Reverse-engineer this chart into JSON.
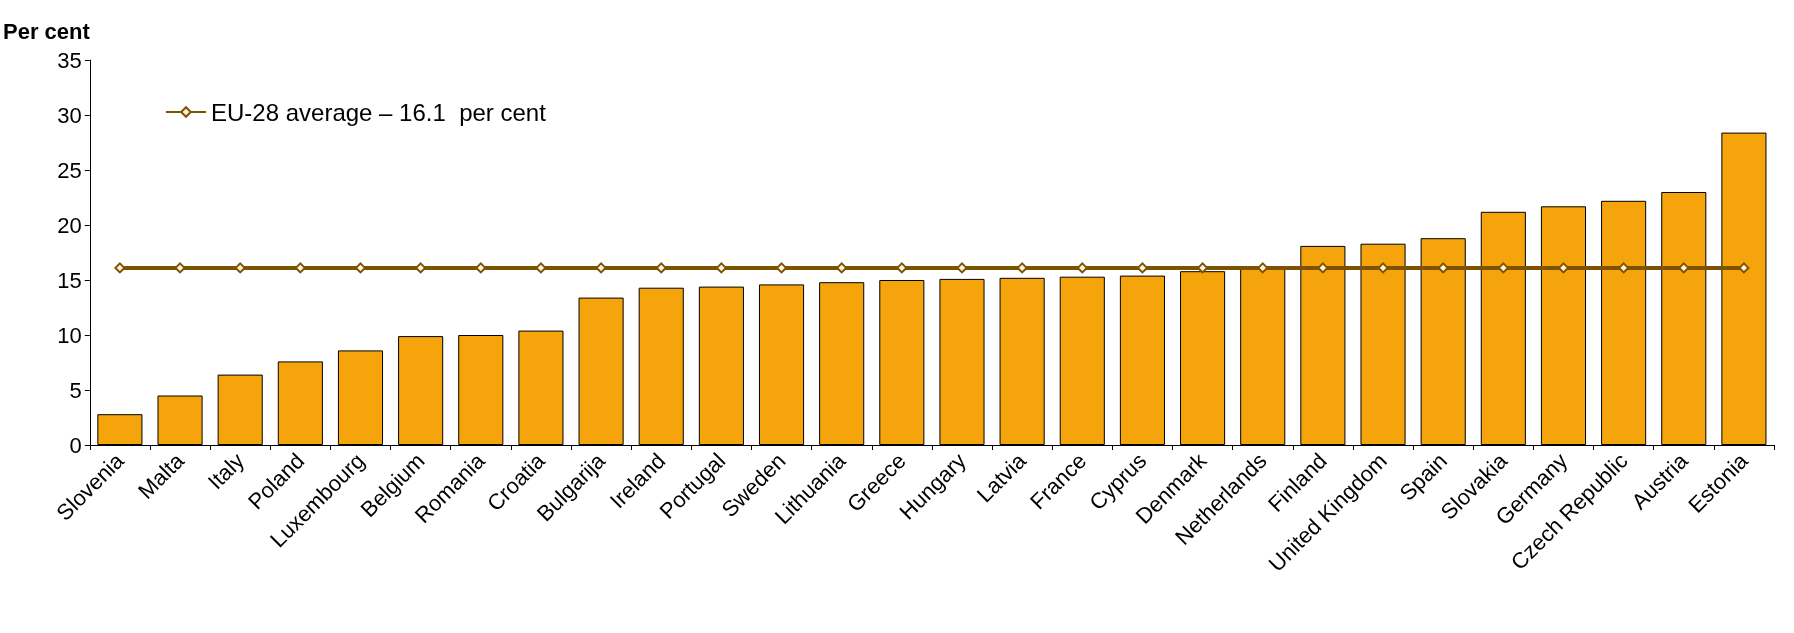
{
  "chart_data": {
    "type": "bar",
    "ylabel": "Per cent",
    "categories": [
      "Slovenia",
      "Malta",
      "Italy",
      "Poland",
      "Luxembourg",
      "Belgium",
      "Romania",
      "Croatia",
      "Bulgarija",
      "Ireland",
      "Portugal",
      "Sweden",
      "Lithuania",
      "Greece",
      "Hungary",
      "Latvia",
      "France",
      "Cyprus",
      "Denmark",
      "Netherlands",
      "Finland",
      "United Kingdom",
      "Spain",
      "Slovakia",
      "Germany",
      "Czech Republic",
      "Austria",
      "Estonia"
    ],
    "series": [
      {
        "color": "#f5a50b",
        "values": [
          2.8,
          4.5,
          6.4,
          7.6,
          8.6,
          9.9,
          10.0,
          10.4,
          13.4,
          14.3,
          14.4,
          14.6,
          14.8,
          15.0,
          15.1,
          15.2,
          15.3,
          15.4,
          15.8,
          16.0,
          18.1,
          18.3,
          18.8,
          21.2,
          21.7,
          22.2,
          23.0,
          28.4
        ]
      },
      {
        "type": "line",
        "name": "EU-28 average – 16.1  per cent",
        "color": "#7f5200",
        "marker": "diamond",
        "values": [
          16.1,
          16.1,
          16.1,
          16.1,
          16.1,
          16.1,
          16.1,
          16.1,
          16.1,
          16.1,
          16.1,
          16.1,
          16.1,
          16.1,
          16.1,
          16.1,
          16.1,
          16.1,
          16.1,
          16.1,
          16.1,
          16.1,
          16.1,
          16.1,
          16.1,
          16.1,
          16.1,
          16.1
        ]
      }
    ],
    "ylim": [
      0,
      35
    ],
    "yticks": [
      0,
      5,
      10,
      15,
      20,
      25,
      30,
      35
    ],
    "grid": false,
    "legend": "top left"
  }
}
